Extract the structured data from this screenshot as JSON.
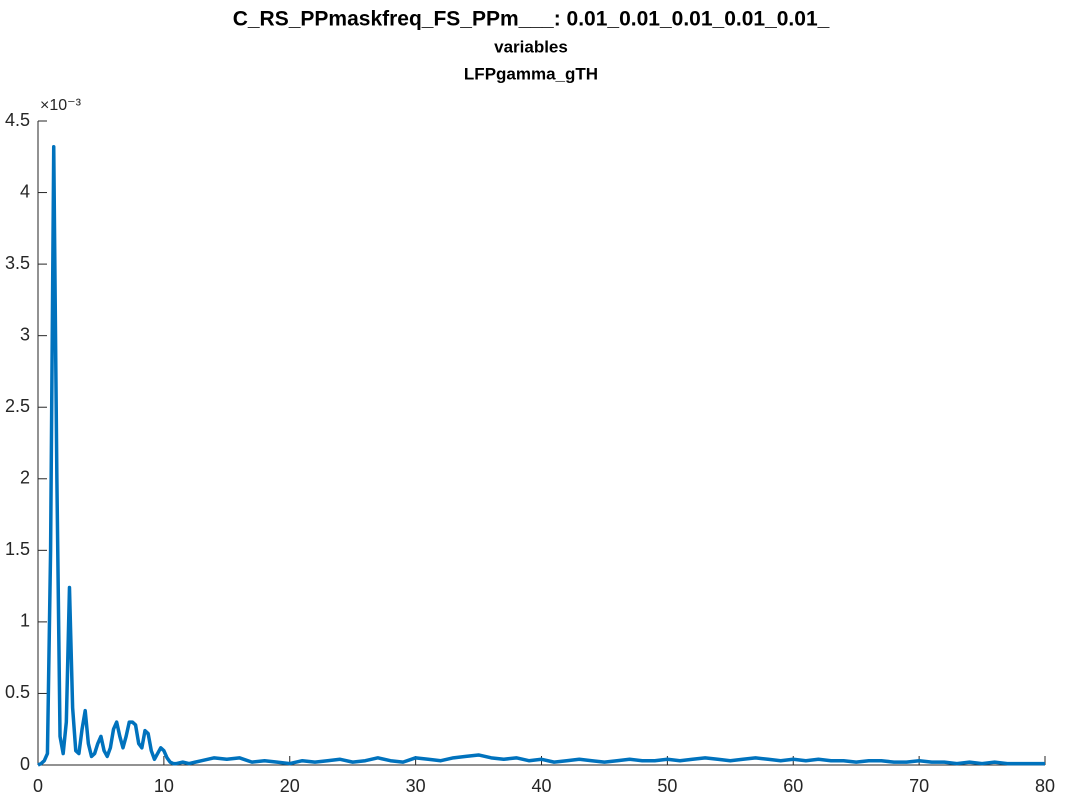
{
  "chart_data": {
    "type": "line",
    "title": "C_RS_PPmaskfreq_FS_PPm___: 0.01_0.01_0.01_0.01_0.01_",
    "subtitle": "variables",
    "subtitle2": "LFPgamma_gTH",
    "y_exponent_label": "×10⁻³",
    "x": [
      0,
      0.25,
      0.5,
      0.75,
      1,
      1.25,
      1.5,
      1.75,
      2,
      2.25,
      2.5,
      2.75,
      3,
      3.25,
      3.5,
      3.75,
      4,
      4.25,
      4.5,
      4.75,
      5,
      5.25,
      5.5,
      5.75,
      6,
      6.25,
      6.5,
      6.75,
      7,
      7.25,
      7.5,
      7.75,
      8,
      8.25,
      8.5,
      8.75,
      9,
      9.25,
      9.5,
      9.75,
      10,
      10.25,
      10.5,
      10.75,
      11,
      11.5,
      12,
      12.5,
      13,
      14,
      15,
      16,
      17,
      18,
      19,
      20,
      21,
      22,
      23,
      24,
      25,
      26,
      27,
      28,
      29,
      30,
      31,
      32,
      33,
      34,
      35,
      36,
      37,
      38,
      39,
      40,
      41,
      42,
      43,
      44,
      45,
      46,
      47,
      48,
      49,
      50,
      51,
      52,
      53,
      54,
      55,
      56,
      57,
      58,
      59,
      60,
      61,
      62,
      63,
      64,
      65,
      66,
      67,
      68,
      69,
      70,
      71,
      72,
      73,
      74,
      75,
      76,
      77,
      78,
      79,
      80
    ],
    "series": [
      {
        "name": "LFPgamma_gTH",
        "color": "#0072bd",
        "values": [
          0,
          0.01,
          0.03,
          0.08,
          1.5,
          4.32,
          2.0,
          0.2,
          0.08,
          0.3,
          1.24,
          0.4,
          0.1,
          0.08,
          0.25,
          0.38,
          0.15,
          0.06,
          0.08,
          0.15,
          0.2,
          0.1,
          0.06,
          0.12,
          0.25,
          0.3,
          0.2,
          0.12,
          0.2,
          0.3,
          0.3,
          0.28,
          0.15,
          0.12,
          0.24,
          0.22,
          0.1,
          0.04,
          0.08,
          0.12,
          0.1,
          0.05,
          0.02,
          0.01,
          0.01,
          0.02,
          0.01,
          0.02,
          0.03,
          0.05,
          0.04,
          0.05,
          0.02,
          0.03,
          0.02,
          0.01,
          0.03,
          0.02,
          0.03,
          0.04,
          0.02,
          0.03,
          0.05,
          0.03,
          0.02,
          0.05,
          0.04,
          0.03,
          0.05,
          0.06,
          0.07,
          0.05,
          0.04,
          0.05,
          0.03,
          0.04,
          0.02,
          0.03,
          0.04,
          0.03,
          0.02,
          0.03,
          0.04,
          0.03,
          0.03,
          0.04,
          0.03,
          0.04,
          0.05,
          0.04,
          0.03,
          0.04,
          0.05,
          0.04,
          0.03,
          0.04,
          0.03,
          0.04,
          0.03,
          0.03,
          0.02,
          0.03,
          0.03,
          0.02,
          0.02,
          0.03,
          0.02,
          0.02,
          0.01,
          0.02,
          0.01,
          0.02,
          0.01,
          0.01,
          0.01,
          0.01
        ]
      }
    ],
    "xlim": [
      0,
      80
    ],
    "xticks": [
      0,
      10,
      20,
      30,
      40,
      50,
      60,
      70,
      80
    ],
    "ylim": [
      0,
      4.5
    ],
    "yticks": [
      0,
      0.5,
      1,
      1.5,
      2,
      2.5,
      3,
      3.5,
      4,
      4.5
    ]
  }
}
